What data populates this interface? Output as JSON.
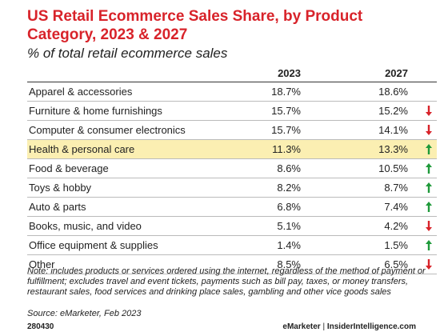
{
  "header": {
    "title": "US Retail Ecommerce Sales Share, by Product Category, 2023 & 2027",
    "subtitle": "% of total retail ecommerce sales"
  },
  "table": {
    "columns": [
      "2023",
      "2027"
    ],
    "rows": [
      [
        "Apparel & accessories",
        "18.7%",
        "18.6%"
      ],
      [
        "Furniture & home furnishings",
        "15.7%",
        "15.2%"
      ],
      [
        "Computer & consumer electronics",
        "15.7%",
        "14.1%"
      ],
      [
        "Health & personal care",
        "11.3%",
        "13.3%"
      ],
      [
        "Food & beverage",
        "8.6%",
        "10.5%"
      ],
      [
        "Toys & hobby",
        "8.2%",
        "8.7%"
      ],
      [
        "Auto & parts",
        "6.8%",
        "7.4%"
      ],
      [
        "Books, music, and video",
        "5.1%",
        "4.2%"
      ],
      [
        "Office equipment & supplies",
        "1.4%",
        "1.5%"
      ],
      [
        "Other",
        "8.5%",
        "6.5%"
      ]
    ]
  },
  "note": "Note: includes products or services ordered using the internet, regardless of the method of payment or fulfillment; excludes travel and event tickets, payments such as bill pay, taxes, or money transfers, restaurant sales, food services and drinking place sales, gambling and other vice goods sales",
  "source": "Source: eMarketer, Feb 2023",
  "footer": {
    "id": "280430",
    "brand": "eMarketer",
    "separator": "|",
    "site": "InsiderIntelligence.com"
  }
}
